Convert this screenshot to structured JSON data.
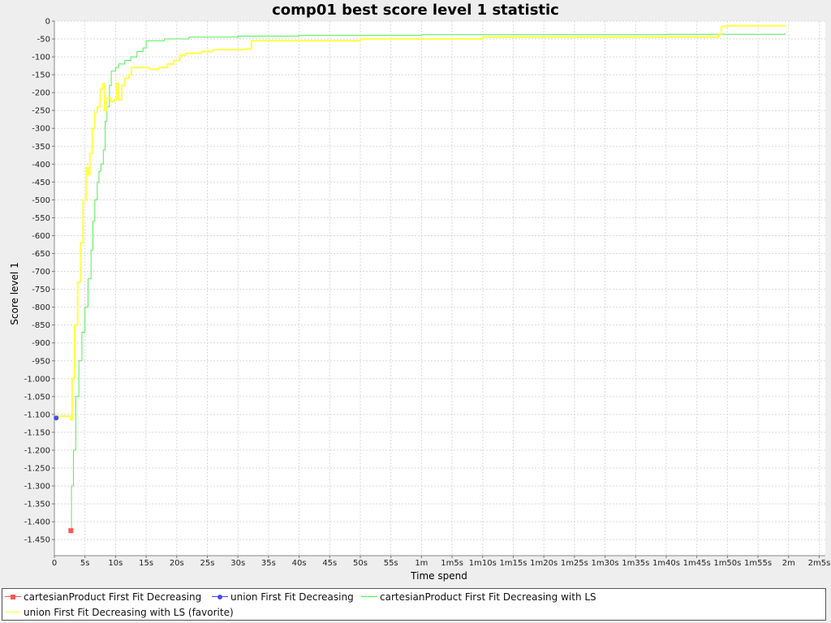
{
  "chart_data": {
    "type": "line",
    "title": "comp01 best score level 1 statistic",
    "xlabel": "Time spend",
    "ylabel": "Score level 1",
    "x_unit": "seconds",
    "xlim": [
      0,
      126
    ],
    "ylim": [
      -1495,
      0
    ],
    "grid": true,
    "legend_position": "bottom",
    "x_ticks": [
      {
        "value": 0,
        "label": "0"
      },
      {
        "value": 5,
        "label": "5s"
      },
      {
        "value": 10,
        "label": "10s"
      },
      {
        "value": 15,
        "label": "15s"
      },
      {
        "value": 20,
        "label": "20s"
      },
      {
        "value": 25,
        "label": "25s"
      },
      {
        "value": 30,
        "label": "30s"
      },
      {
        "value": 35,
        "label": "35s"
      },
      {
        "value": 40,
        "label": "40s"
      },
      {
        "value": 45,
        "label": "45s"
      },
      {
        "value": 50,
        "label": "50s"
      },
      {
        "value": 55,
        "label": "55s"
      },
      {
        "value": 60,
        "label": "1m"
      },
      {
        "value": 65,
        "label": "1m5s"
      },
      {
        "value": 70,
        "label": "1m10s"
      },
      {
        "value": 75,
        "label": "1m15s"
      },
      {
        "value": 80,
        "label": "1m20s"
      },
      {
        "value": 85,
        "label": "1m25s"
      },
      {
        "value": 90,
        "label": "1m30s"
      },
      {
        "value": 95,
        "label": "1m35s"
      },
      {
        "value": 100,
        "label": "1m40s"
      },
      {
        "value": 105,
        "label": "1m45s"
      },
      {
        "value": 110,
        "label": "1m50s"
      },
      {
        "value": 115,
        "label": "1m55s"
      },
      {
        "value": 120,
        "label": "2m"
      },
      {
        "value": 125,
        "label": "2m5s"
      }
    ],
    "y_ticks": [
      {
        "value": 0,
        "label": "0"
      },
      {
        "value": -50,
        "label": "-50"
      },
      {
        "value": -100,
        "label": "-100"
      },
      {
        "value": -150,
        "label": "-150"
      },
      {
        "value": -200,
        "label": "-200"
      },
      {
        "value": -250,
        "label": "-250"
      },
      {
        "value": -300,
        "label": "-300"
      },
      {
        "value": -350,
        "label": "-350"
      },
      {
        "value": -400,
        "label": "-400"
      },
      {
        "value": -450,
        "label": "-450"
      },
      {
        "value": -500,
        "label": "-500"
      },
      {
        "value": -550,
        "label": "-550"
      },
      {
        "value": -600,
        "label": "-600"
      },
      {
        "value": -650,
        "label": "-650"
      },
      {
        "value": -700,
        "label": "-700"
      },
      {
        "value": -750,
        "label": "-750"
      },
      {
        "value": -800,
        "label": "-800"
      },
      {
        "value": -850,
        "label": "-850"
      },
      {
        "value": -900,
        "label": "-900"
      },
      {
        "value": -950,
        "label": "-950"
      },
      {
        "value": -1000,
        "label": "-1.000"
      },
      {
        "value": -1050,
        "label": "-1.050"
      },
      {
        "value": -1100,
        "label": "-1.100"
      },
      {
        "value": -1150,
        "label": "-1.150"
      },
      {
        "value": -1200,
        "label": "-1.200"
      },
      {
        "value": -1250,
        "label": "-1.250"
      },
      {
        "value": -1300,
        "label": "-1.300"
      },
      {
        "value": -1350,
        "label": "-1.350"
      },
      {
        "value": -1400,
        "label": "-1.400"
      },
      {
        "value": -1450,
        "label": "-1.450"
      }
    ],
    "series": [
      {
        "name": "cartesianProduct First Fit Decreasing",
        "color": "#ff5555",
        "style": "marker",
        "marker": "square",
        "points": [
          [
            2.7,
            -1425
          ]
        ]
      },
      {
        "name": "union First Fit Decreasing",
        "color": "#4a4ae6",
        "style": "marker",
        "marker": "circle",
        "points": [
          [
            0.3,
            -1110
          ]
        ]
      },
      {
        "name": "cartesianProduct First Fit Decreasing with LS",
        "color": "#55ee55",
        "style": "line",
        "points": [
          [
            2.7,
            -1425
          ],
          [
            2.8,
            -1300
          ],
          [
            3.1,
            -1200
          ],
          [
            3.5,
            -1050
          ],
          [
            4.0,
            -950
          ],
          [
            4.5,
            -870
          ],
          [
            5.0,
            -800
          ],
          [
            5.5,
            -720
          ],
          [
            6.0,
            -640
          ],
          [
            6.3,
            -560
          ],
          [
            6.6,
            -500
          ],
          [
            7.0,
            -450
          ],
          [
            7.3,
            -420
          ],
          [
            7.6,
            -400
          ],
          [
            8.0,
            -360
          ],
          [
            8.3,
            -280
          ],
          [
            8.6,
            -240
          ],
          [
            9.0,
            -180
          ],
          [
            9.3,
            -140
          ],
          [
            10.0,
            -130
          ],
          [
            10.5,
            -120
          ],
          [
            11.5,
            -110
          ],
          [
            12.5,
            -100
          ],
          [
            13.5,
            -85
          ],
          [
            14.5,
            -75
          ],
          [
            15.0,
            -55
          ],
          [
            18.0,
            -50
          ],
          [
            22.0,
            -45
          ],
          [
            30.0,
            -42
          ],
          [
            40.0,
            -40
          ],
          [
            60.0,
            -38
          ],
          [
            100.0,
            -37
          ],
          [
            119.5,
            -35
          ]
        ]
      },
      {
        "name": "union First Fit Decreasing with LS (favorite)",
        "color": "#ffff44",
        "style": "line",
        "points": [
          [
            0.3,
            -1105
          ],
          [
            1.5,
            -1105
          ],
          [
            2.6,
            -1115
          ],
          [
            2.9,
            -1000
          ],
          [
            3.3,
            -850
          ],
          [
            3.8,
            -730
          ],
          [
            4.3,
            -620
          ],
          [
            4.7,
            -500
          ],
          [
            5.2,
            -410
          ],
          [
            5.5,
            -430
          ],
          [
            5.8,
            -370
          ],
          [
            6.2,
            -300
          ],
          [
            6.6,
            -255
          ],
          [
            7.0,
            -240
          ],
          [
            7.5,
            -190
          ],
          [
            7.9,
            -175
          ],
          [
            8.2,
            -250
          ],
          [
            8.6,
            -215
          ],
          [
            9.2,
            -225
          ],
          [
            9.8,
            -220
          ],
          [
            10.2,
            -175
          ],
          [
            10.5,
            -220
          ],
          [
            11.0,
            -180
          ],
          [
            11.5,
            -160
          ],
          [
            12.2,
            -150
          ],
          [
            12.6,
            -130
          ],
          [
            14.5,
            -130
          ],
          [
            15.5,
            -135
          ],
          [
            17.0,
            -130
          ],
          [
            18.5,
            -120
          ],
          [
            19.5,
            -110
          ],
          [
            20.5,
            -95
          ],
          [
            21.5,
            -90
          ],
          [
            24.0,
            -85
          ],
          [
            26.0,
            -80
          ],
          [
            31.0,
            -78
          ],
          [
            32.0,
            -78
          ],
          [
            32.2,
            -55
          ],
          [
            50.0,
            -50
          ],
          [
            70.0,
            -45
          ],
          [
            108.5,
            -37
          ],
          [
            109.0,
            -15
          ],
          [
            110.0,
            -13
          ],
          [
            119.5,
            -13
          ]
        ]
      }
    ]
  }
}
